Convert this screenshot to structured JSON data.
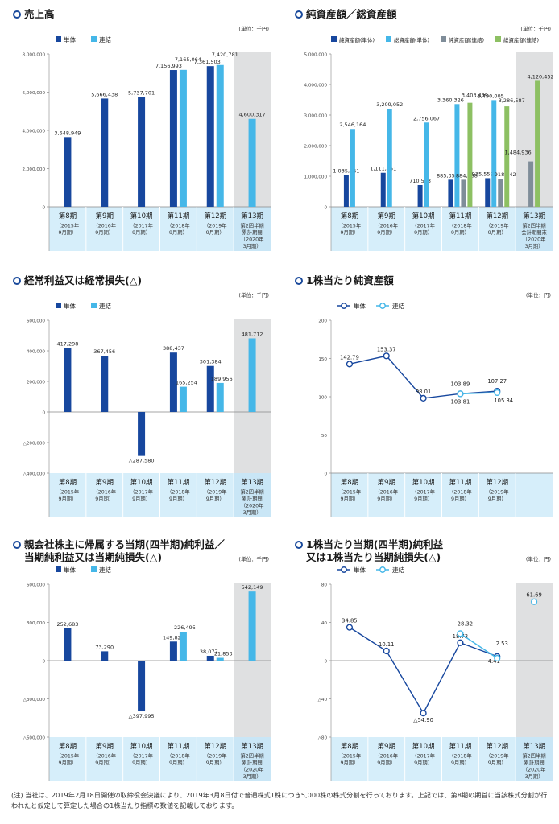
{
  "colors": {
    "tan": "#17479e",
    "ren": "#45b7e8",
    "tanR": "#7f8d99",
    "renR": "#8dc063",
    "band": "#d6eefa",
    "gray": "#dfe0e1"
  },
  "common": {
    "unit_thousand": "(単位：千円)",
    "unit_yen": "(単位：円)",
    "legend_tan": "単体",
    "legend_ren": "連結"
  },
  "charts": [
    {
      "id": "sales",
      "title": [
        "売上高"
      ],
      "type": "bar",
      "unit": "(単位：千円)",
      "yTicks": [
        0,
        2000000,
        4000000,
        6000000,
        8000000
      ],
      "yTickLabels": [
        "0",
        "2,000,000",
        "4,000,000",
        "6,000,000",
        "8,000,000"
      ],
      "ylim": [
        0,
        8000000
      ],
      "categories": [
        [
          "第8期",
          "（2015年",
          "9月期）"
        ],
        [
          "第9期",
          "（2016年",
          "9月期）"
        ],
        [
          "第10期",
          "（2017年",
          "9月期）"
        ],
        [
          "第11期",
          "（2018年",
          "9月期）"
        ],
        [
          "第12期",
          "（2019年",
          "9月期）"
        ],
        [
          "第13期",
          "第2四半期",
          "累計期間",
          "（2020年",
          "3月期）"
        ]
      ],
      "legend": [
        "単体",
        "連結"
      ],
      "series": [
        {
          "name": "単体",
          "values": [
            3648949,
            5666438,
            5737701,
            7156993,
            7361503,
            null
          ],
          "labels": [
            "3,648,949",
            "5,666,438",
            "5,737,701",
            "7,156,993",
            "7,361,503",
            ""
          ]
        },
        {
          "name": "連結",
          "values": [
            null,
            null,
            null,
            7165064,
            7420781,
            4600317
          ],
          "labels": [
            "",
            "",
            "",
            "7,165,064",
            "7,420,781",
            "4,600,317"
          ]
        }
      ]
    },
    {
      "id": "assets",
      "title": [
        "純資産額／総資産額"
      ],
      "type": "bar",
      "unit": "(単位：千円)",
      "yTicks": [
        0,
        1000000,
        2000000,
        3000000,
        4000000,
        5000000
      ],
      "yTickLabels": [
        "0",
        "1,000,000",
        "2,000,000",
        "3,000,000",
        "4,000,000",
        "5,000,000"
      ],
      "ylim": [
        0,
        5000000
      ],
      "categories": [
        [
          "第8期",
          "（2015年",
          "9月期）"
        ],
        [
          "第9期",
          "（2016年",
          "9月期）"
        ],
        [
          "第10期",
          "（2017年",
          "9月期）"
        ],
        [
          "第11期",
          "（2018年",
          "9月期）"
        ],
        [
          "第12期",
          "（2019年",
          "9月期）"
        ],
        [
          "第13期",
          "第2四半期",
          "会計期間末",
          "（2020年",
          "3月期）"
        ]
      ],
      "legend": [
        "純資産額(単体)",
        "総資産額(単体)",
        "純資産額(連結)",
        "総資産額(連結)"
      ],
      "series": [
        {
          "name": "純資産額(単体)",
          "values": [
            1035241,
            1111951,
            710563,
            885355,
            935559,
            null
          ],
          "labels": [
            "1,035,241",
            "1,111,951",
            "710,563",
            "885,355",
            "935,559",
            ""
          ]
        },
        {
          "name": "総資産額(単体)",
          "values": [
            2546164,
            3209052,
            2756067,
            3360326,
            3490005,
            null
          ],
          "labels": [
            "2,546,164",
            "3,209,052",
            "2,756,067",
            "3,360,326",
            "3,490,005",
            ""
          ]
        },
        {
          "name": "純資産額(連結)",
          "values": [
            null,
            null,
            null,
            884688,
            918742,
            1484936
          ],
          "labels": [
            "",
            "",
            "",
            "884,688",
            "918,742",
            "1,484,936"
          ]
        },
        {
          "name": "総資産額(連結)",
          "values": [
            null,
            null,
            null,
            3403439,
            3286587,
            4120452
          ],
          "labels": [
            "",
            "",
            "",
            "3,403,439",
            "3,286,587",
            "4,120,452"
          ]
        }
      ]
    },
    {
      "id": "ordinary",
      "title": [
        "経常利益又は経常損失(△)"
      ],
      "type": "bar",
      "unit": "(単位：千円)",
      "yTicks": [
        -400000,
        -200000,
        0,
        200000,
        400000,
        600000
      ],
      "yTickLabels": [
        "△400,000",
        "△200,000",
        "0",
        "200,000",
        "400,000",
        "600,000"
      ],
      "ylim": [
        -400000,
        600000
      ],
      "categories": [
        [
          "第8期",
          "（2015年",
          "9月期）"
        ],
        [
          "第9期",
          "（2016年",
          "9月期）"
        ],
        [
          "第10期",
          "（2017年",
          "9月期）"
        ],
        [
          "第11期",
          "（2018年",
          "9月期）"
        ],
        [
          "第12期",
          "（2019年",
          "9月期）"
        ],
        [
          "第13期",
          "第2四半期",
          "累計期間",
          "（2020年",
          "3月期）"
        ]
      ],
      "legend": [
        "単体",
        "連結"
      ],
      "series": [
        {
          "name": "単体",
          "values": [
            417298,
            367456,
            -287580,
            388437,
            301384,
            null
          ],
          "labels": [
            "417,298",
            "367,456",
            "△287,580",
            "388,437",
            "301,384",
            ""
          ]
        },
        {
          "name": "連結",
          "values": [
            null,
            null,
            null,
            165254,
            189956,
            481712
          ],
          "labels": [
            "",
            "",
            "",
            "165,254",
            "189,956",
            "481,712"
          ]
        }
      ]
    },
    {
      "id": "bps",
      "title": [
        "1株当たり純資産額"
      ],
      "type": "line",
      "unit": "(単位：円)",
      "yTicks": [
        0,
        50,
        100,
        150,
        200
      ],
      "yTickLabels": [
        "0",
        "50",
        "100",
        "150",
        "200"
      ],
      "ylim": [
        0,
        200
      ],
      "categories": [
        [
          "第8期",
          "（2015年",
          "9月期）"
        ],
        [
          "第9期",
          "（2016年",
          "9月期）"
        ],
        [
          "第10期",
          "（2017年",
          "9月期）"
        ],
        [
          "第11期",
          "（2018年",
          "9月期）"
        ],
        [
          "第12期",
          "（2019年",
          "9月期）"
        ]
      ],
      "legend": [
        "単体",
        "連結"
      ],
      "series": [
        {
          "name": "単体",
          "values": [
            142.79,
            153.37,
            98.01,
            103.89,
            107.27
          ],
          "labels": [
            "142.79",
            "153.37",
            "98.01",
            "103.89",
            "107.27"
          ]
        },
        {
          "name": "連結",
          "values": [
            null,
            null,
            null,
            103.81,
            105.34
          ],
          "labels": [
            "",
            "",
            "",
            "103.81",
            "105.34"
          ]
        }
      ]
    },
    {
      "id": "netincome",
      "title": [
        "親会社株主に帰属する当期(四半期)純利益／",
        "当期純利益又は当期純損失(△)"
      ],
      "type": "bar",
      "unit": "(単位：千円)",
      "yTicks": [
        -600000,
        -300000,
        0,
        300000,
        600000
      ],
      "yTickLabels": [
        "△600,000",
        "△300,000",
        "0",
        "300,000",
        "600,000"
      ],
      "ylim": [
        -600000,
        600000
      ],
      "categories": [
        [
          "第8期",
          "（2015年",
          "9月期）"
        ],
        [
          "第9期",
          "（2016年",
          "9月期）"
        ],
        [
          "第10期",
          "（2017年",
          "9月期）"
        ],
        [
          "第11期",
          "（2018年",
          "9月期）"
        ],
        [
          "第12期",
          "（2019年",
          "9月期）"
        ],
        [
          "第13期",
          "第2四半期",
          "累計期間",
          "（2020年",
          "3月期）"
        ]
      ],
      "legend": [
        "単体",
        "連結"
      ],
      "series": [
        {
          "name": "単体",
          "values": [
            252683,
            73290,
            -397995,
            149827,
            38077,
            null
          ],
          "labels": [
            "252,683",
            "73,290",
            "△397,995",
            "149,827",
            "38,077",
            ""
          ]
        },
        {
          "name": "連結",
          "values": [
            null,
            null,
            null,
            226495,
            21853,
            542149
          ],
          "labels": [
            "",
            "",
            "",
            "226,495",
            "21,853",
            "542,149"
          ]
        }
      ]
    },
    {
      "id": "eps",
      "title": [
        "1株当たり当期(四半期)純利益",
        "又は1株当たり当期純損失(△)"
      ],
      "type": "line",
      "unit": "(単位：円)",
      "yTicks": [
        -80,
        -40,
        0,
        40,
        80
      ],
      "yTickLabels": [
        "△80",
        "△40",
        "0",
        "40",
        "80"
      ],
      "ylim": [
        -80,
        80
      ],
      "categories": [
        [
          "第8期",
          "（2015年",
          "9月期）"
        ],
        [
          "第9期",
          "（2016年",
          "9月期）"
        ],
        [
          "第10期",
          "（2017年",
          "9月期）"
        ],
        [
          "第11期",
          "（2018年",
          "9月期）"
        ],
        [
          "第12期",
          "（2019年",
          "9月期）"
        ],
        [
          "第13期",
          "第2四半期",
          "累計期間",
          "（2020年",
          "3月期）"
        ]
      ],
      "legend": [
        "単体",
        "連結"
      ],
      "series": [
        {
          "name": "単体",
          "values": [
            34.85,
            10.11,
            -54.9,
            18.73,
            4.41,
            null
          ],
          "labels": [
            "34.85",
            "10.11",
            "△54.90",
            "18.73",
            "4.41",
            ""
          ]
        },
        {
          "name": "連結",
          "values": [
            null,
            null,
            null,
            28.32,
            2.53,
            61.69
          ],
          "labels": [
            "",
            "",
            "",
            "28.32",
            "2.53",
            "61.69"
          ]
        }
      ]
    }
  ],
  "footnote": "(注) 当社は、2019年2月18日開催の取締役会決議により、2019年3月8日付で普通株式1株につき5,000株の株式分割を行っております。上記では、第8期の期首に当該株式分割が行われたと仮定して算定した場合の1株当たり指標の数値を記載しております。"
}
